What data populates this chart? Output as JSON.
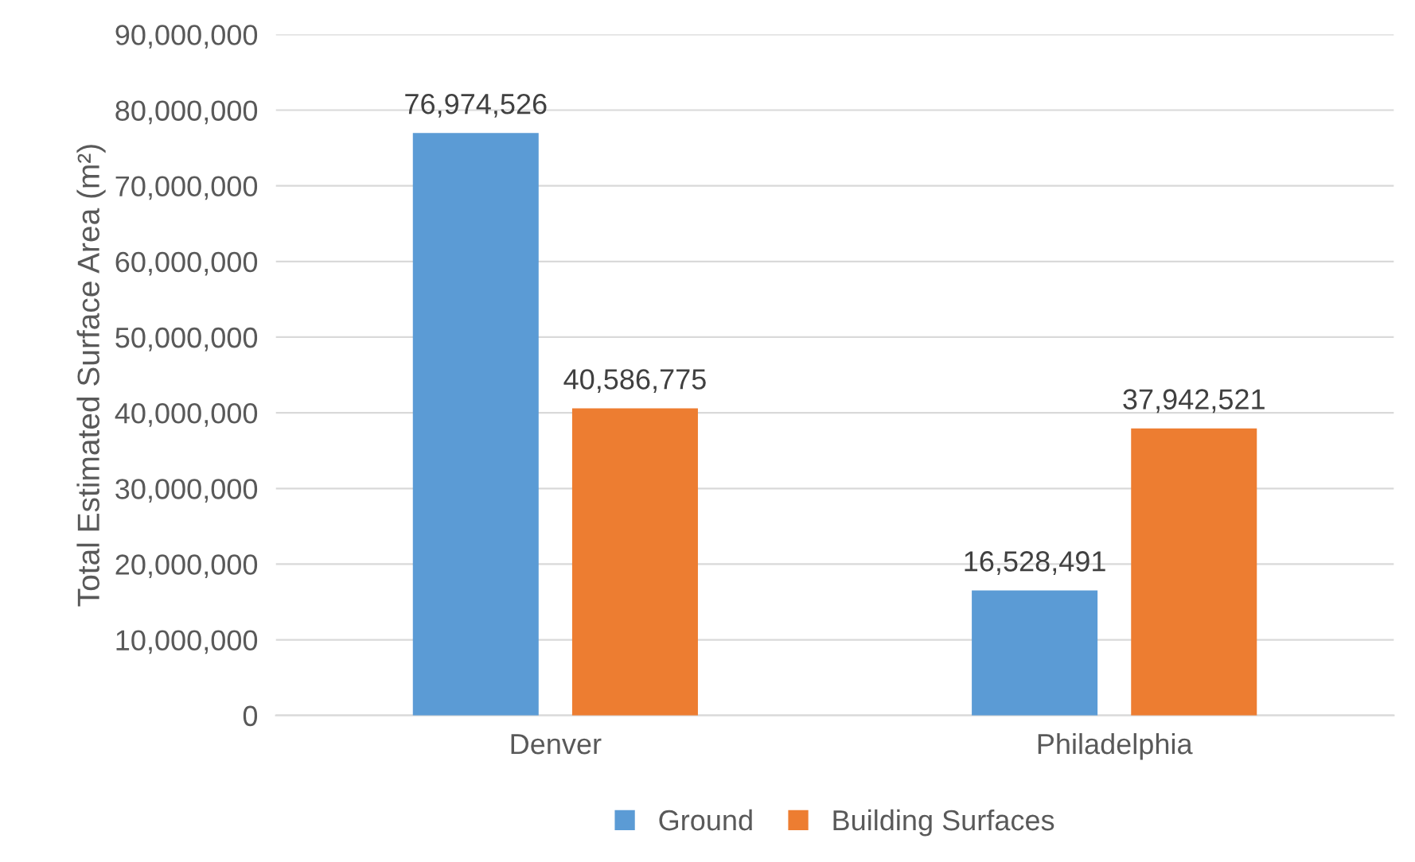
{
  "chart_data": {
    "type": "bar",
    "ylabel": "Total Estimated Surface Area (m²)",
    "categories": [
      "Denver",
      "Philadelphia"
    ],
    "series": [
      {
        "name": "Ground",
        "color": "#5b9bd5",
        "values": [
          76974526,
          16528491
        ],
        "value_labels": [
          "76,974,526",
          "16,528,491"
        ]
      },
      {
        "name": "Building Surfaces",
        "color": "#ed7d31",
        "values": [
          40586775,
          37942521
        ],
        "value_labels": [
          "40,586,775",
          "37,942,521"
        ]
      }
    ],
    "ylim": [
      0,
      90000000
    ],
    "yticks": [
      0,
      {
        "value": 10000000,
        "label": "10,000,000"
      },
      {
        "value": 20000000,
        "label": "20,000,000"
      },
      {
        "value": 30000000,
        "label": "30,000,000"
      },
      {
        "value": 40000000,
        "label": "40,000,000"
      },
      {
        "value": 50000000,
        "label": "50,000,000"
      },
      {
        "value": 60000000,
        "label": "60,000,000"
      },
      {
        "value": 70000000,
        "label": "70,000,000"
      },
      {
        "value": 80000000,
        "label": "80,000,000"
      },
      {
        "value": 90000000,
        "label": "90,000,000"
      }
    ],
    "grid": "y",
    "legend": "bottom"
  }
}
